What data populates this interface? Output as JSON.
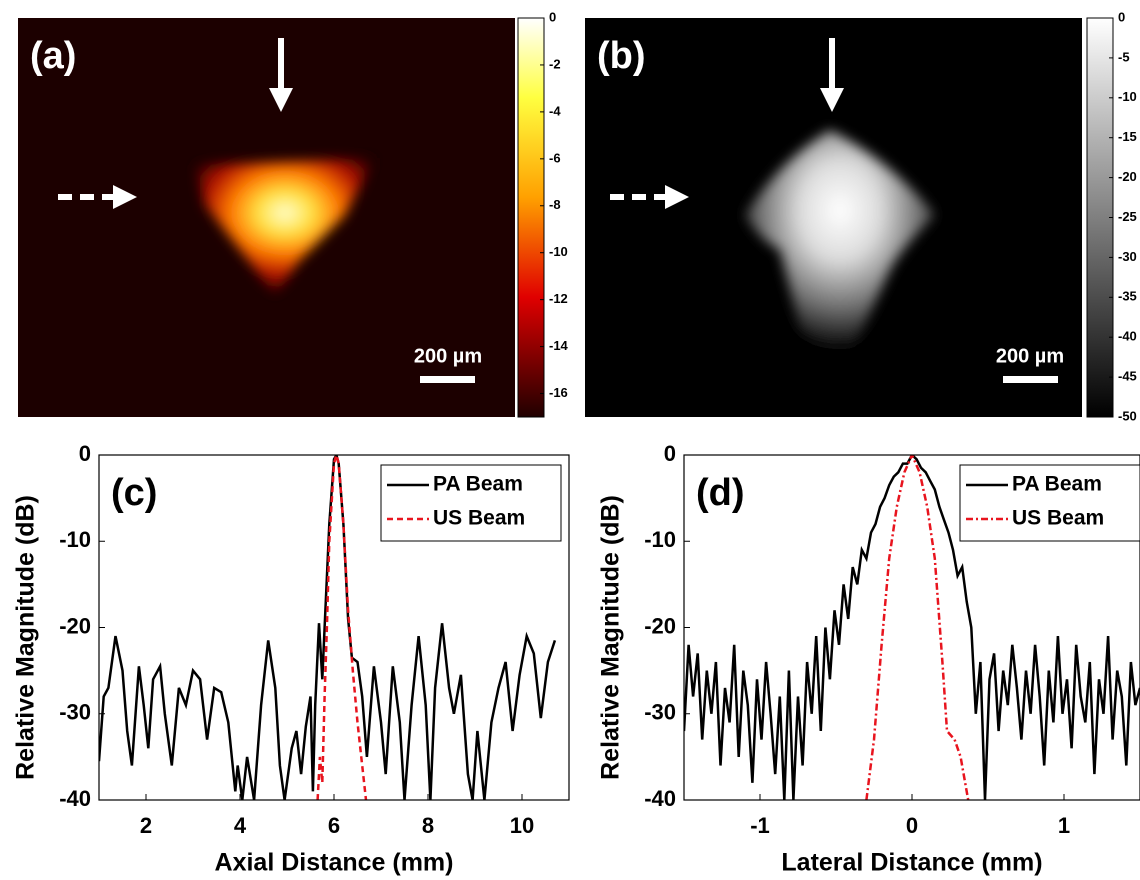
{
  "chart_data": [
    {
      "type": "image",
      "panel_label": "(a)",
      "scale_bar": "200 µm",
      "colormap": "hot",
      "clim": [
        -17,
        0
      ],
      "cticks": [
        0,
        -2,
        -4,
        -6,
        -8,
        -10,
        -12,
        -14,
        -16
      ]
    },
    {
      "type": "image",
      "panel_label": "(b)",
      "scale_bar": "200 µm",
      "colormap": "gray",
      "clim": [
        -50,
        0
      ],
      "cticks": [
        0,
        -5,
        -10,
        -15,
        -20,
        -25,
        -30,
        -35,
        -40,
        -45,
        -50
      ]
    },
    {
      "type": "line",
      "panel_label": "(c)",
      "xlabel": "Axial Distance (mm)",
      "ylabel": "Relative Magnitude (dB)",
      "xlim": [
        1,
        11
      ],
      "xticks": [
        2,
        4,
        6,
        8,
        10
      ],
      "ylim": [
        -40,
        0
      ],
      "yticks": [
        0,
        -10,
        -20,
        -30,
        -40
      ],
      "series": [
        {
          "name": "PA Beam",
          "color": "#000000",
          "linestyle": "solid",
          "x": [
            1.0,
            1.1,
            1.2,
            1.35,
            1.5,
            1.6,
            1.7,
            1.85,
            1.95,
            2.05,
            2.15,
            2.3,
            2.4,
            2.55,
            2.7,
            2.85,
            3.0,
            3.15,
            3.3,
            3.45,
            3.6,
            3.75,
            3.9,
            3.95,
            4.05,
            4.15,
            4.3,
            4.45,
            4.6,
            4.75,
            4.85,
            4.95,
            5.1,
            5.2,
            5.3,
            5.4,
            5.5,
            5.55,
            5.6,
            5.68,
            5.75,
            5.8,
            5.9,
            6.0,
            6.05,
            6.1,
            6.2,
            6.3,
            6.38,
            6.5,
            6.6,
            6.7,
            6.85,
            7.0,
            7.1,
            7.25,
            7.4,
            7.5,
            7.65,
            7.8,
            7.95,
            8.05,
            8.15,
            8.3,
            8.45,
            8.55,
            8.7,
            8.85,
            8.95,
            9.05,
            9.2,
            9.35,
            9.5,
            9.65,
            9.8,
            9.95,
            10.1,
            10.25,
            10.4,
            10.55,
            10.7
          ],
          "values": [
            -35.5,
            -28,
            -27,
            -21,
            -25,
            -32,
            -36,
            -24.5,
            -29,
            -34,
            -26,
            -24.5,
            -30,
            -36,
            -27,
            -29,
            -25,
            -26,
            -33,
            -27,
            -27.5,
            -31,
            -39,
            -36,
            -40,
            -35,
            -40,
            -29,
            -21.5,
            -27,
            -36,
            -40,
            -34,
            -32,
            -37,
            -31.5,
            -28,
            -39,
            -29,
            -19.5,
            -26,
            -20,
            -8,
            -0.5,
            0,
            -1,
            -8,
            -19,
            -23.5,
            -24,
            -28,
            -35,
            -24.5,
            -31,
            -37,
            -24.5,
            -31,
            -40,
            -29,
            -21,
            -29,
            -40,
            -27,
            -19.5,
            -27,
            -30,
            -25.5,
            -37,
            -40,
            -32,
            -40,
            -31,
            -27,
            -24,
            -32,
            -25.5,
            -21,
            -23,
            -30.5,
            -24,
            -21.5
          ]
        },
        {
          "name": "US Beam",
          "color": "#e8141e",
          "linestyle": "dashed",
          "x": [
            5.65,
            5.7,
            5.75,
            5.8,
            5.85,
            5.9,
            6.0,
            6.05,
            6.1,
            6.2,
            6.3,
            6.4,
            6.5,
            6.6,
            6.68
          ],
          "values": [
            -40,
            -35,
            -38,
            -28,
            -20,
            -10,
            -1,
            0,
            -1,
            -8,
            -18,
            -25,
            -31,
            -36,
            -40
          ]
        }
      ]
    },
    {
      "type": "line",
      "panel_label": "(d)",
      "xlabel": "Lateral Distance (mm)",
      "ylabel": "Relative Magnitude (dB)",
      "xlim": [
        -1.5,
        1.5
      ],
      "xticks": [
        -1,
        0,
        1
      ],
      "ylim": [
        -40,
        0
      ],
      "yticks": [
        0,
        -10,
        -20,
        -30,
        -40
      ],
      "series": [
        {
          "name": "PA Beam",
          "color": "#000000",
          "linestyle": "solid",
          "x": [
            -1.5,
            -1.47,
            -1.44,
            -1.41,
            -1.38,
            -1.35,
            -1.32,
            -1.29,
            -1.26,
            -1.23,
            -1.2,
            -1.17,
            -1.14,
            -1.11,
            -1.08,
            -1.05,
            -1.02,
            -0.99,
            -0.96,
            -0.93,
            -0.9,
            -0.87,
            -0.84,
            -0.81,
            -0.78,
            -0.75,
            -0.72,
            -0.69,
            -0.66,
            -0.63,
            -0.6,
            -0.57,
            -0.54,
            -0.51,
            -0.48,
            -0.45,
            -0.42,
            -0.39,
            -0.36,
            -0.33,
            -0.3,
            -0.27,
            -0.24,
            -0.21,
            -0.18,
            -0.15,
            -0.12,
            -0.09,
            -0.06,
            -0.03,
            0,
            0.03,
            0.06,
            0.09,
            0.12,
            0.15,
            0.18,
            0.21,
            0.24,
            0.27,
            0.3,
            0.33,
            0.36,
            0.39,
            0.42,
            0.45,
            0.48,
            0.51,
            0.54,
            0.57,
            0.6,
            0.63,
            0.66,
            0.69,
            0.72,
            0.75,
            0.78,
            0.81,
            0.84,
            0.87,
            0.9,
            0.93,
            0.96,
            0.99,
            1.02,
            1.05,
            1.08,
            1.11,
            1.14,
            1.17,
            1.2,
            1.23,
            1.26,
            1.29,
            1.32,
            1.35,
            1.38,
            1.41,
            1.44,
            1.47,
            1.5
          ],
          "values": [
            -32,
            -22,
            -28,
            -23,
            -33,
            -25,
            -30,
            -24,
            -36,
            -27,
            -31,
            -22,
            -35,
            -25,
            -29,
            -38,
            -26,
            -33,
            -24,
            -30,
            -37,
            -28,
            -40,
            -25,
            -40,
            -28,
            -36,
            -24,
            -30,
            -21,
            -32,
            -20,
            -26,
            -18,
            -22,
            -15,
            -19,
            -13,
            -15,
            -11,
            -12,
            -9,
            -8,
            -6,
            -5,
            -3.5,
            -2.5,
            -2,
            -1,
            -1,
            0,
            -0.5,
            -1.5,
            -2,
            -3,
            -4,
            -6,
            -7.5,
            -9,
            -11,
            -14,
            -13,
            -17,
            -20,
            -30,
            -24,
            -40,
            -26,
            -23,
            -32,
            -25,
            -29,
            -22,
            -27,
            -33,
            -25,
            -30,
            -22,
            -28,
            -36,
            -25,
            -31,
            -21,
            -30,
            -26,
            -34,
            -22,
            -28,
            -31,
            -24,
            -37,
            -26,
            -30,
            -21,
            -33,
            -25,
            -28,
            -36,
            -24,
            -29,
            -27
          ]
        },
        {
          "name": "US Beam",
          "color": "#e8141e",
          "linestyle": "dashdot",
          "x": [
            -0.3,
            -0.25,
            -0.2,
            -0.15,
            -0.1,
            -0.05,
            0,
            0.05,
            0.1,
            0.15,
            0.2,
            0.23,
            0.28,
            0.32,
            0.37
          ],
          "values": [
            -40,
            -33,
            -22,
            -12,
            -6,
            -2,
            0,
            -2,
            -6,
            -12,
            -24,
            -32,
            -33,
            -35,
            -40
          ]
        }
      ]
    }
  ]
}
